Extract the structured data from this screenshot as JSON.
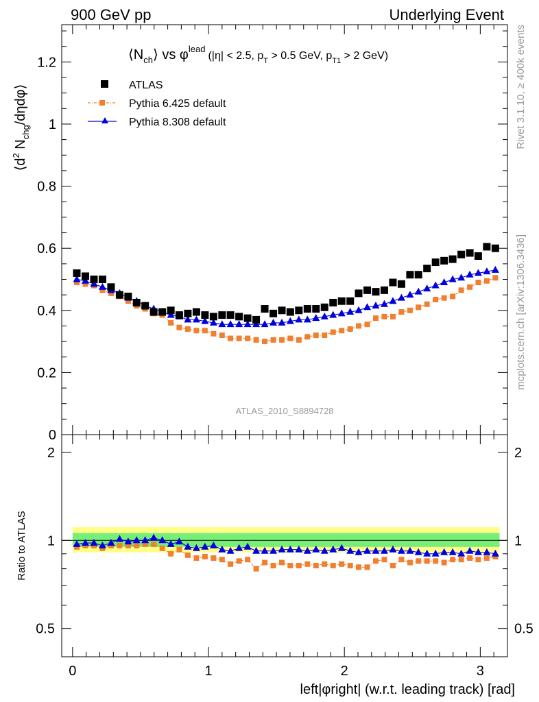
{
  "header": {
    "left": "900 GeV pp",
    "right": "Underlying Event"
  },
  "side": {
    "rivet": "Rivet 3.1.10, ≥ 400k events",
    "mcplots": "mcplots.cern.ch [arXiv:1306.3436]"
  },
  "title": {
    "main": "⟨N",
    "main_sub": "ch",
    "main_rest": "⟩ vs φ",
    "main_sup": "lead",
    "cuts_a": "(|η| < 2.5, p",
    "cuts_sub1": "T",
    "cuts_b": " > 0.5 GeV, p",
    "cuts_sub2": "T1",
    "cuts_c": " > 2 GeV)"
  },
  "watermark": "ATLAS_2010_S8894728",
  "legend": {
    "atlas": "ATLAS",
    "py6": "Pythia 6.425 default",
    "py8": "Pythia 8.308 default"
  },
  "colors": {
    "atlas": "#000000",
    "py6": "#f0802f",
    "py8": "#0000dd",
    "band_inner": "#77ee77",
    "band_outer": "#ffff88"
  },
  "chart_data": [
    {
      "type": "scatter",
      "ylabel_parts": {
        "a": "⟨d",
        "sup": "2",
        "b": " N",
        "sub": "chg",
        "c": "/dηdφ⟩"
      },
      "xlim": [
        -0.08,
        3.2
      ],
      "ylim": [
        0,
        1.32
      ],
      "yticks": [
        "0",
        "0.2",
        "0.4",
        "0.6",
        "0.8",
        "1",
        "1.2"
      ],
      "x": [
        0.031,
        0.094,
        0.157,
        0.22,
        0.283,
        0.346,
        0.409,
        0.471,
        0.534,
        0.597,
        0.66,
        0.723,
        0.785,
        0.848,
        0.911,
        0.974,
        1.037,
        1.1,
        1.162,
        1.225,
        1.288,
        1.351,
        1.414,
        1.477,
        1.54,
        1.602,
        1.665,
        1.728,
        1.791,
        1.854,
        1.917,
        1.98,
        2.043,
        2.105,
        2.168,
        2.231,
        2.294,
        2.357,
        2.42,
        2.483,
        2.545,
        2.608,
        2.671,
        2.734,
        2.797,
        2.86,
        2.923,
        2.985,
        3.048,
        3.111
      ],
      "series": [
        {
          "name": "ATLAS",
          "values": [
            0.52,
            0.51,
            0.5,
            0.5,
            0.475,
            0.45,
            0.445,
            0.425,
            0.415,
            0.395,
            0.395,
            0.4,
            0.385,
            0.39,
            0.395,
            0.385,
            0.38,
            0.385,
            0.385,
            0.38,
            0.375,
            0.37,
            0.405,
            0.39,
            0.4,
            0.395,
            0.4,
            0.405,
            0.405,
            0.41,
            0.425,
            0.43,
            0.43,
            0.455,
            0.465,
            0.46,
            0.465,
            0.49,
            0.485,
            0.515,
            0.515,
            0.535,
            0.555,
            0.56,
            0.565,
            0.58,
            0.585,
            0.575,
            0.605,
            0.6
          ]
        },
        {
          "name": "Pythia 6.425 default",
          "values": [
            0.49,
            0.485,
            0.48,
            0.465,
            0.455,
            0.445,
            0.43,
            0.415,
            0.405,
            0.39,
            0.385,
            0.36,
            0.345,
            0.34,
            0.335,
            0.335,
            0.325,
            0.32,
            0.31,
            0.31,
            0.31,
            0.305,
            0.3,
            0.305,
            0.305,
            0.31,
            0.305,
            0.315,
            0.32,
            0.32,
            0.33,
            0.335,
            0.34,
            0.35,
            0.355,
            0.375,
            0.38,
            0.38,
            0.395,
            0.4,
            0.41,
            0.42,
            0.435,
            0.44,
            0.445,
            0.465,
            0.475,
            0.49,
            0.495,
            0.505
          ]
        },
        {
          "name": "Pythia 8.308 default",
          "values": [
            0.5,
            0.495,
            0.485,
            0.475,
            0.465,
            0.455,
            0.44,
            0.43,
            0.415,
            0.405,
            0.395,
            0.385,
            0.38,
            0.37,
            0.37,
            0.365,
            0.36,
            0.355,
            0.355,
            0.355,
            0.355,
            0.355,
            0.355,
            0.36,
            0.36,
            0.365,
            0.37,
            0.37,
            0.375,
            0.38,
            0.385,
            0.39,
            0.395,
            0.4,
            0.41,
            0.415,
            0.42,
            0.43,
            0.44,
            0.45,
            0.46,
            0.47,
            0.48,
            0.49,
            0.5,
            0.505,
            0.515,
            0.52,
            0.525,
            0.53
          ]
        }
      ]
    },
    {
      "type": "scatter",
      "ylabel": "Ratio to ATLAS",
      "xlabel": "left|φright| (w.r.t. leading track) [rad]",
      "xlim": [
        -0.08,
        3.2
      ],
      "ylim": [
        0.4,
        2.3
      ],
      "log_y": true,
      "xticks": [
        "0",
        "1",
        "2",
        "3"
      ],
      "yticks": [
        "0.5",
        "1",
        "2"
      ],
      "band_inner": [
        0.95,
        1.06
      ],
      "band_outer": [
        0.91,
        1.11
      ],
      "series": [
        {
          "name": "Pythia 6.425 default",
          "values": [
            0.95,
            0.96,
            0.96,
            0.94,
            0.96,
            0.96,
            0.96,
            0.96,
            0.97,
            0.97,
            0.94,
            0.9,
            0.93,
            0.89,
            0.87,
            0.88,
            0.87,
            0.86,
            0.83,
            0.85,
            0.86,
            0.8,
            0.84,
            0.82,
            0.84,
            0.82,
            0.82,
            0.83,
            0.82,
            0.83,
            0.82,
            0.83,
            0.82,
            0.81,
            0.81,
            0.85,
            0.86,
            0.82,
            0.86,
            0.84,
            0.85,
            0.85,
            0.85,
            0.84,
            0.86,
            0.86,
            0.87,
            0.86,
            0.87,
            0.88
          ]
        },
        {
          "name": "Pythia 8.308 default",
          "values": [
            0.97,
            0.98,
            0.98,
            0.96,
            0.98,
            1.01,
            0.99,
            1.0,
            1.0,
            1.02,
            1.0,
            0.97,
            0.99,
            0.95,
            0.94,
            0.95,
            0.96,
            0.93,
            0.92,
            0.94,
            0.95,
            0.92,
            0.92,
            0.92,
            0.93,
            0.93,
            0.93,
            0.92,
            0.93,
            0.92,
            0.93,
            0.94,
            0.92,
            0.91,
            0.92,
            0.92,
            0.92,
            0.93,
            0.92,
            0.92,
            0.91,
            0.9,
            0.9,
            0.91,
            0.91,
            0.9,
            0.92,
            0.91,
            0.91,
            0.9
          ]
        }
      ]
    }
  ]
}
